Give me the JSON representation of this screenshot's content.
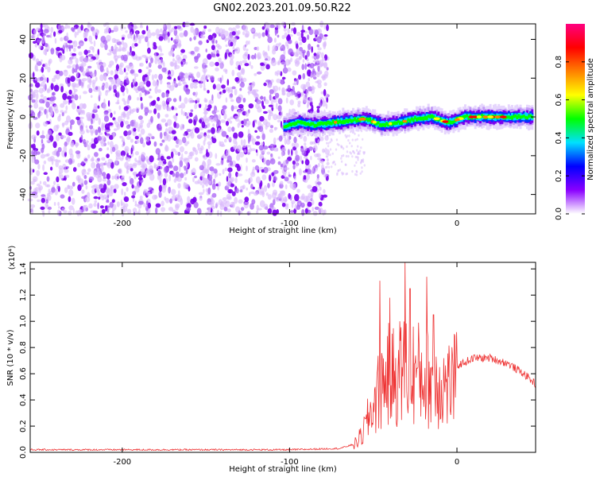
{
  "title": "GN02.2023.201.09.50.R22",
  "chart_data": [
    {
      "type": "heatmap",
      "xlabel": "Height of straight line (km)",
      "ylabel": "Frequency (Hz)",
      "xlim": [
        -255,
        47
      ],
      "ylim": [
        -50,
        48
      ],
      "x_ticks": [
        -200,
        -100,
        0
      ],
      "x_tick_labels": [
        "-200",
        "-100",
        "0"
      ],
      "y_ticks": [
        -40,
        -20,
        0,
        20,
        40
      ],
      "y_tick_labels": [
        "-40",
        "-20",
        "0",
        "20",
        "40"
      ],
      "noise_region_x": [
        -255,
        -80
      ],
      "ridge": {
        "x": [
          -103,
          -95,
          -85,
          -75,
          -65,
          -55,
          -45,
          -35,
          -25,
          -15,
          -5,
          5,
          15,
          25,
          35,
          45
        ],
        "y": [
          -5,
          -3,
          -4,
          -3,
          -2,
          -1,
          -4,
          -3,
          -1,
          0,
          -3,
          0,
          0,
          0,
          0,
          0
        ]
      },
      "colorbar": {
        "label": "Normalized spectral amplitude",
        "range": [
          0.0,
          1.0
        ],
        "ticks": [
          0.0,
          0.2,
          0.4,
          0.6,
          0.8
        ],
        "tick_labels": [
          "0.0",
          "0.2",
          "0.4",
          "0.6",
          "0.8"
        ],
        "colors": [
          "#ffffff",
          "#8a00ff",
          "#0000ff",
          "#00e0ff",
          "#00ff00",
          "#ffff00",
          "#ff8000",
          "#ff0000",
          "#ff0080"
        ]
      }
    },
    {
      "type": "line",
      "xlabel": "Height of straight line (km)",
      "ylabel": "SNR (10 * v/v)",
      "y_multiplier": "(x10⁴)",
      "xlim": [
        -255,
        47
      ],
      "ylim": [
        0,
        1.45
      ],
      "x_ticks": [
        -200,
        -100,
        0
      ],
      "x_tick_labels": [
        "-200",
        "-100",
        "0"
      ],
      "y_ticks": [
        0.0,
        0.2,
        0.4,
        0.6,
        0.8,
        1.0,
        1.2,
        1.4
      ],
      "y_tick_labels": [
        "0.0",
        "0.2",
        "0.4",
        "0.6",
        "0.8",
        "1.0",
        "1.2",
        "1.4"
      ],
      "color": "#ee3333",
      "envelope": {
        "x": [
          -255,
          -100,
          -70,
          -62,
          -57,
          -52,
          -47,
          -42,
          -37,
          -32,
          -27,
          -22,
          -17,
          -12,
          -7,
          0,
          10,
          20,
          30,
          40,
          47
        ],
        "y": [
          0.02,
          0.02,
          0.03,
          0.06,
          0.15,
          0.35,
          0.55,
          0.72,
          0.7,
          0.78,
          0.75,
          0.72,
          0.68,
          0.66,
          0.62,
          0.66,
          0.72,
          0.72,
          0.68,
          0.6,
          0.52
        ]
      },
      "peaks": [
        {
          "x": -46,
          "y": 1.31
        },
        {
          "x": -40,
          "y": 1.18
        },
        {
          "x": -31,
          "y": 1.45
        },
        {
          "x": -28,
          "y": 1.25
        },
        {
          "x": -18,
          "y": 1.34
        },
        {
          "x": -14,
          "y": 1.05
        }
      ]
    }
  ]
}
